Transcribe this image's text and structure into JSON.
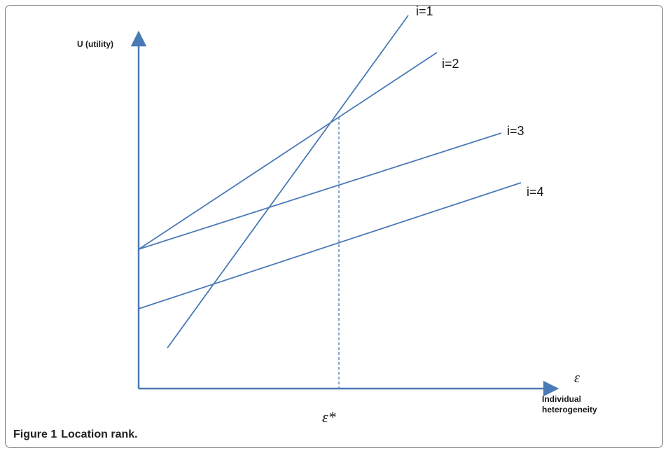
{
  "figure": {
    "caption_number": "Figure 1",
    "caption_text": "Location rank."
  },
  "axes": {
    "y_label": "U (utility)",
    "x_symbol": "ε",
    "x_label_line1": "Individual",
    "x_label_line2": "heterogeneity",
    "x_marker": "ε*"
  },
  "lines": [
    {
      "label": "i=1"
    },
    {
      "label": "i=2"
    },
    {
      "label": "i=3"
    },
    {
      "label": "i=4"
    }
  ],
  "colors": {
    "line": "#4a7ab5",
    "text": "#1a1a1a",
    "frame": "#7a7a7a"
  }
}
